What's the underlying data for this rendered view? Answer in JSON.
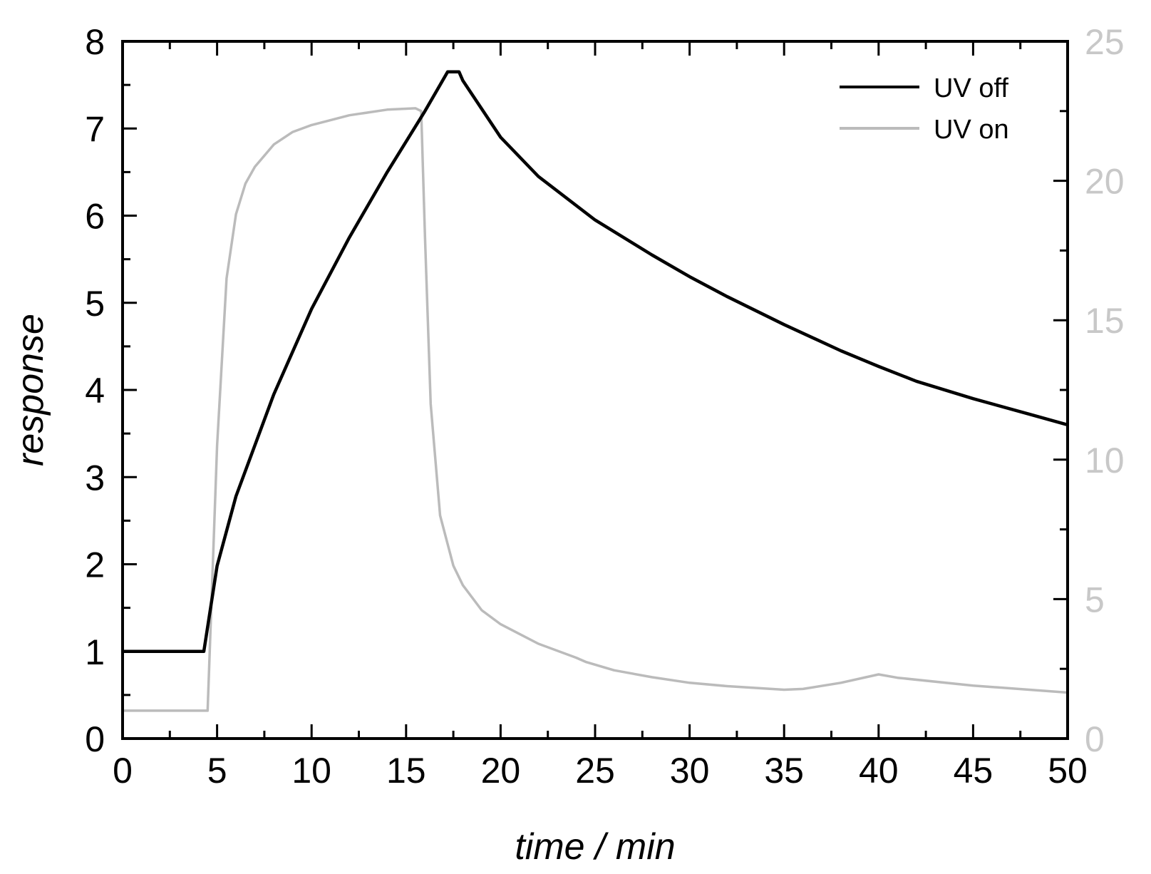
{
  "chart_data": {
    "type": "line",
    "title": "",
    "xlabel": "time / min",
    "ylabel": "response",
    "xlim": [
      0,
      50
    ],
    "ylim": [
      0,
      8
    ],
    "y2lim": [
      0,
      25
    ],
    "x_ticks": [
      0,
      5,
      10,
      15,
      20,
      25,
      30,
      35,
      40,
      45,
      50
    ],
    "y_ticks": [
      0,
      1,
      2,
      3,
      4,
      5,
      6,
      7,
      8
    ],
    "y2_ticks": [
      0,
      5,
      10,
      15,
      20,
      25
    ],
    "grid": false,
    "legend_position": "top-right",
    "series": [
      {
        "name": "UV off",
        "axis": "left",
        "color": "#000000",
        "x": [
          0,
          4.3,
          5,
          6,
          8,
          10,
          12,
          14,
          16,
          17.2,
          17.8,
          18,
          20,
          22,
          25,
          28,
          30,
          32,
          35,
          38,
          40,
          42,
          45,
          48,
          50
        ],
        "y": [
          1.0,
          1.0,
          1.98,
          2.78,
          3.95,
          4.93,
          5.75,
          6.5,
          7.2,
          7.65,
          7.65,
          7.55,
          6.9,
          6.45,
          5.95,
          5.55,
          5.3,
          5.07,
          4.75,
          4.45,
          4.27,
          4.1,
          3.9,
          3.72,
          3.6
        ]
      },
      {
        "name": "UV on",
        "axis": "right",
        "color": "#bbbbbb",
        "x": [
          0,
          4.5,
          5,
          5.5,
          6,
          6.5,
          7,
          8,
          9,
          10,
          12,
          14,
          15.5,
          15.8,
          16,
          16.3,
          16.8,
          17.5,
          18,
          19,
          20,
          22,
          24,
          24.5,
          26,
          28,
          30,
          32,
          35,
          36,
          38,
          40,
          41,
          45,
          50
        ],
        "y": [
          1.0,
          1.0,
          10.5,
          16.5,
          18.8,
          19.9,
          20.5,
          21.3,
          21.75,
          22.0,
          22.35,
          22.55,
          22.6,
          22.5,
          18,
          12,
          8,
          6.2,
          5.5,
          4.6,
          4.1,
          3.4,
          2.9,
          2.75,
          2.45,
          2.2,
          2.0,
          1.88,
          1.75,
          1.78,
          2.0,
          2.3,
          2.18,
          1.9,
          1.65
        ]
      }
    ]
  }
}
